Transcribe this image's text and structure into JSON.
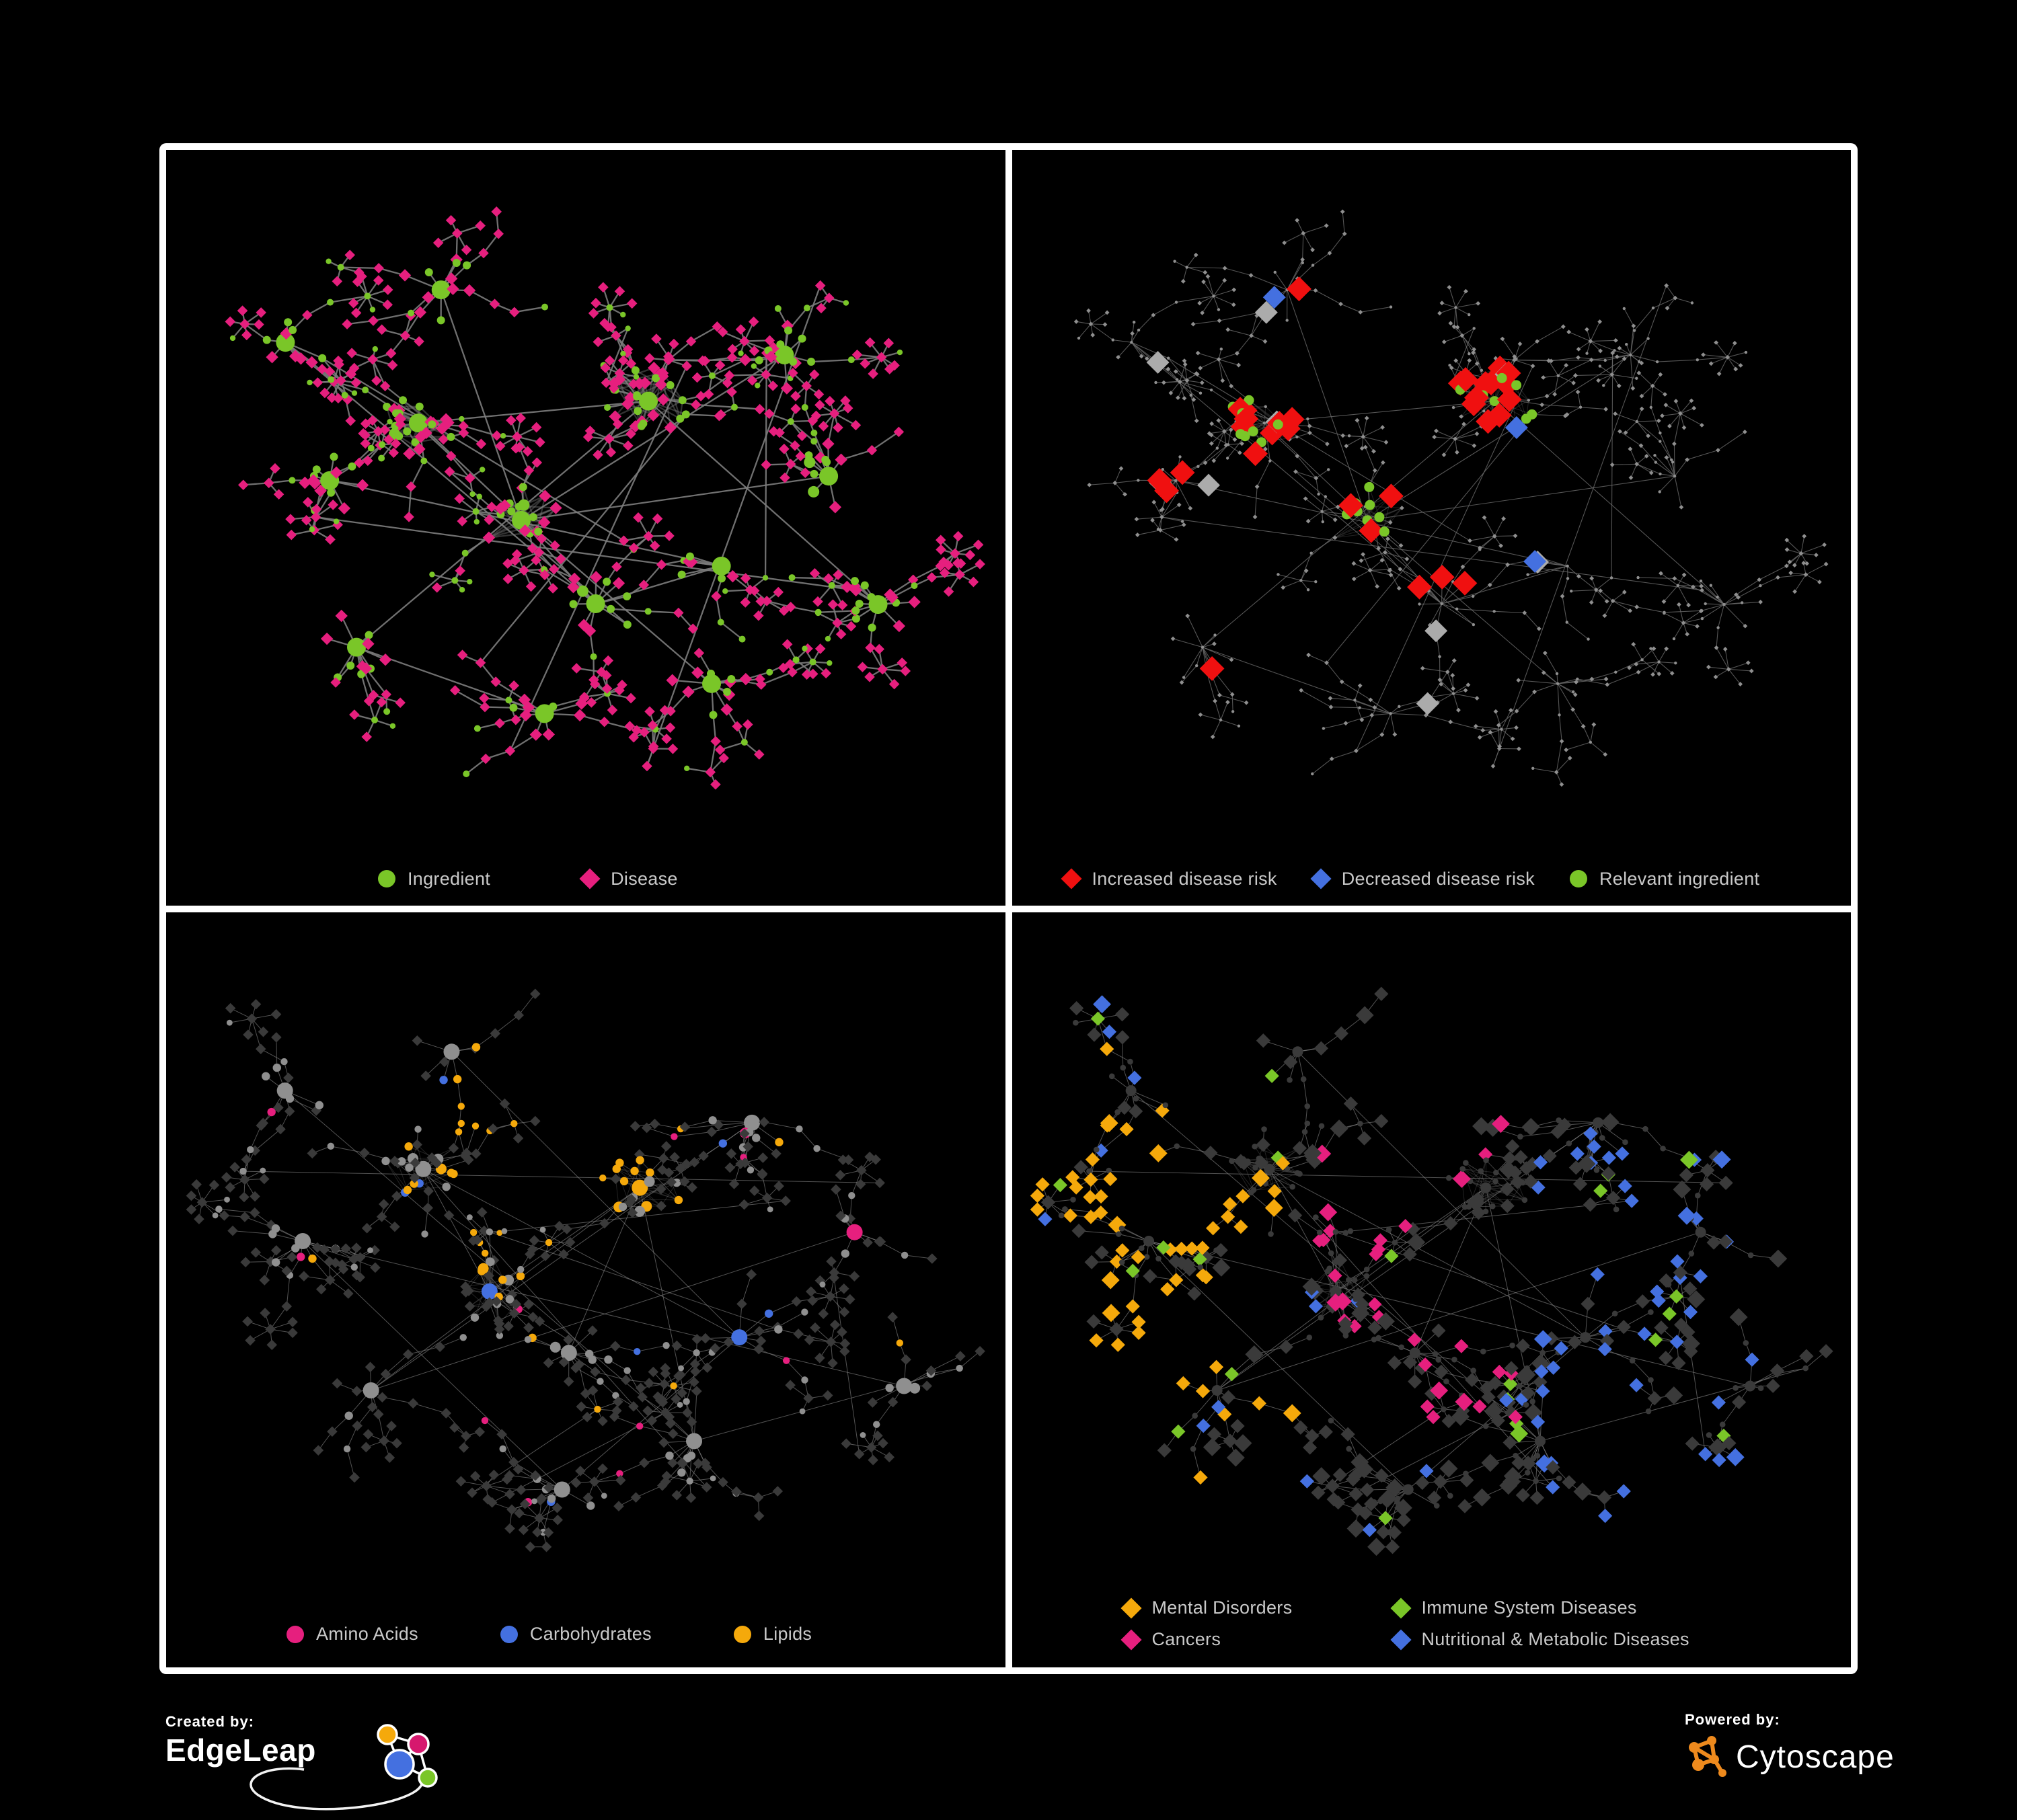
{
  "colors": {
    "green": "#7AC628",
    "pink": "#E61F7E",
    "red": "#F01010",
    "blue": "#4470E0",
    "yellow": "#F5A90B",
    "gray_node": "#8F8F8F",
    "light_gray_diamond": "#ABABAB",
    "dark_node": "#3A3A3A",
    "edge_strong": "#7D7D7D",
    "edge_dim": "#6B6B6B",
    "edge_light": "#8A8A8A",
    "legend_text": "#C9C9C9",
    "white": "#FFFFFF",
    "cytoscape_orange": "#EE8A1D",
    "edgeleap_magenta": "#D6186E",
    "background": "#000000",
    "frame": "#FFFFFF"
  },
  "panels": [
    {
      "id": "ingredient-disease",
      "legend": [
        {
          "shape": "circle",
          "color": "green",
          "label": "Ingredient"
        },
        {
          "shape": "diamond",
          "color": "pink",
          "label": "Disease"
        }
      ],
      "network": {
        "seed": 11,
        "style": "bipartite"
      }
    },
    {
      "id": "disease-risk",
      "legend": [
        {
          "shape": "diamond",
          "color": "red",
          "label": "Increased disease risk"
        },
        {
          "shape": "diamond",
          "color": "blue",
          "label": "Decreased disease risk"
        },
        {
          "shape": "circle",
          "color": "green",
          "label": "Relevant ingredient"
        }
      ],
      "network": {
        "seed": 11,
        "style": "risk",
        "highlight_caps": {
          "red": 34,
          "blue": 7,
          "gray": 9,
          "green": 26
        }
      }
    },
    {
      "id": "nutrient-classes",
      "legend": [
        {
          "shape": "circle",
          "color": "pink",
          "label": "Amino Acids"
        },
        {
          "shape": "circle",
          "color": "blue",
          "label": "Carbohydrates"
        },
        {
          "shape": "circle",
          "color": "yellow",
          "label": "Lipids"
        }
      ],
      "network": {
        "seed": 47,
        "style": "nutrients"
      }
    },
    {
      "id": "disease-categories",
      "legend": [
        {
          "shape": "diamond",
          "color": "yellow",
          "label": "Mental Disorders"
        },
        {
          "shape": "diamond",
          "color": "green",
          "label": "Immune System Diseases"
        },
        {
          "shape": "diamond",
          "color": "pink",
          "label": "Cancers"
        },
        {
          "shape": "diamond",
          "color": "blue",
          "label": "Nutritional & Metabolic Diseases"
        }
      ],
      "network": {
        "seed": 47,
        "style": "categories"
      }
    }
  ],
  "footer": {
    "created_by": {
      "label": "Created by:",
      "name": "EdgeLeap"
    },
    "powered_by": {
      "label": "Powered by:",
      "name": "Cytoscape"
    }
  }
}
